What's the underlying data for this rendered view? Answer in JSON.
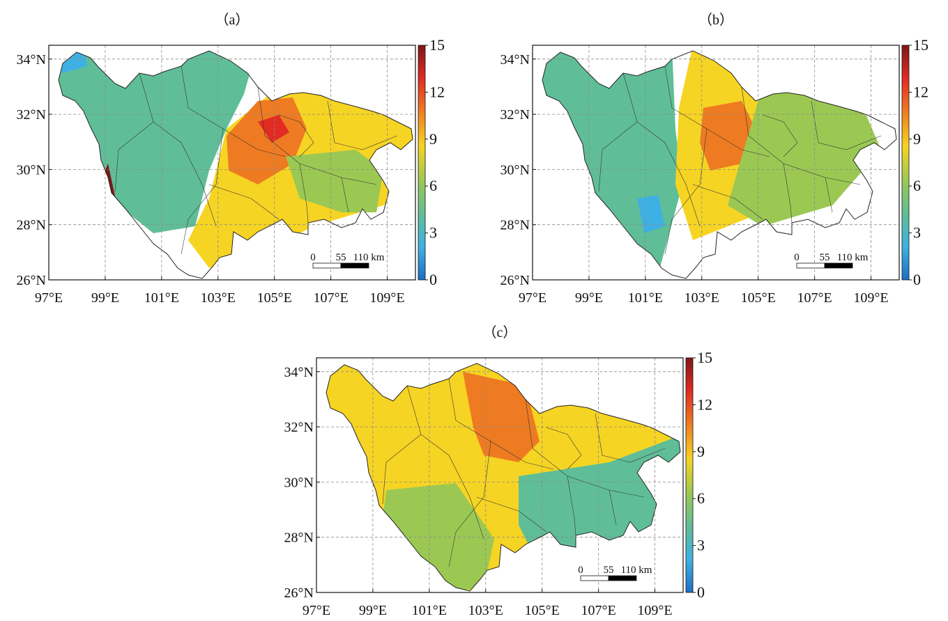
{
  "panels": [
    {
      "title": "（a）",
      "zones": [
        "#5fbe97",
        "#f6d423",
        "#ee7b21",
        "#e12b23",
        "#7e1716",
        "#3fb0e3",
        "#9bc853"
      ]
    },
    {
      "title": "（b）",
      "zones": [
        "#5fbe97",
        "#f6d423",
        "#ee7b21",
        "#9bc853",
        "#3fb0e3"
      ]
    },
    {
      "title": "（c）",
      "zones": [
        "#f6d423",
        "#ee7b21",
        "#9bc853",
        "#5fbe97"
      ]
    }
  ],
  "map": {
    "lon_ticks": [
      "97°E",
      "99°E",
      "101°E",
      "103°E",
      "105°E",
      "107°E",
      "109°E"
    ],
    "lat_ticks": [
      "34°N",
      "32°N",
      "30°N",
      "28°N",
      "26°N"
    ],
    "lon_range": [
      97,
      110
    ],
    "lat_range": [
      26,
      34.5
    ]
  },
  "colorbar": {
    "ticks": [
      "15",
      "12",
      "9",
      "6",
      "3",
      "0"
    ],
    "range": [
      0,
      15
    ],
    "colors": [
      "#1e6fc4",
      "#3fb0e3",
      "#5fbe97",
      "#9bc853",
      "#f6d423",
      "#ee7b21",
      "#e12b23",
      "#7e1716"
    ]
  },
  "scalebar": {
    "labels": [
      "0",
      "55",
      "110 km"
    ]
  }
}
